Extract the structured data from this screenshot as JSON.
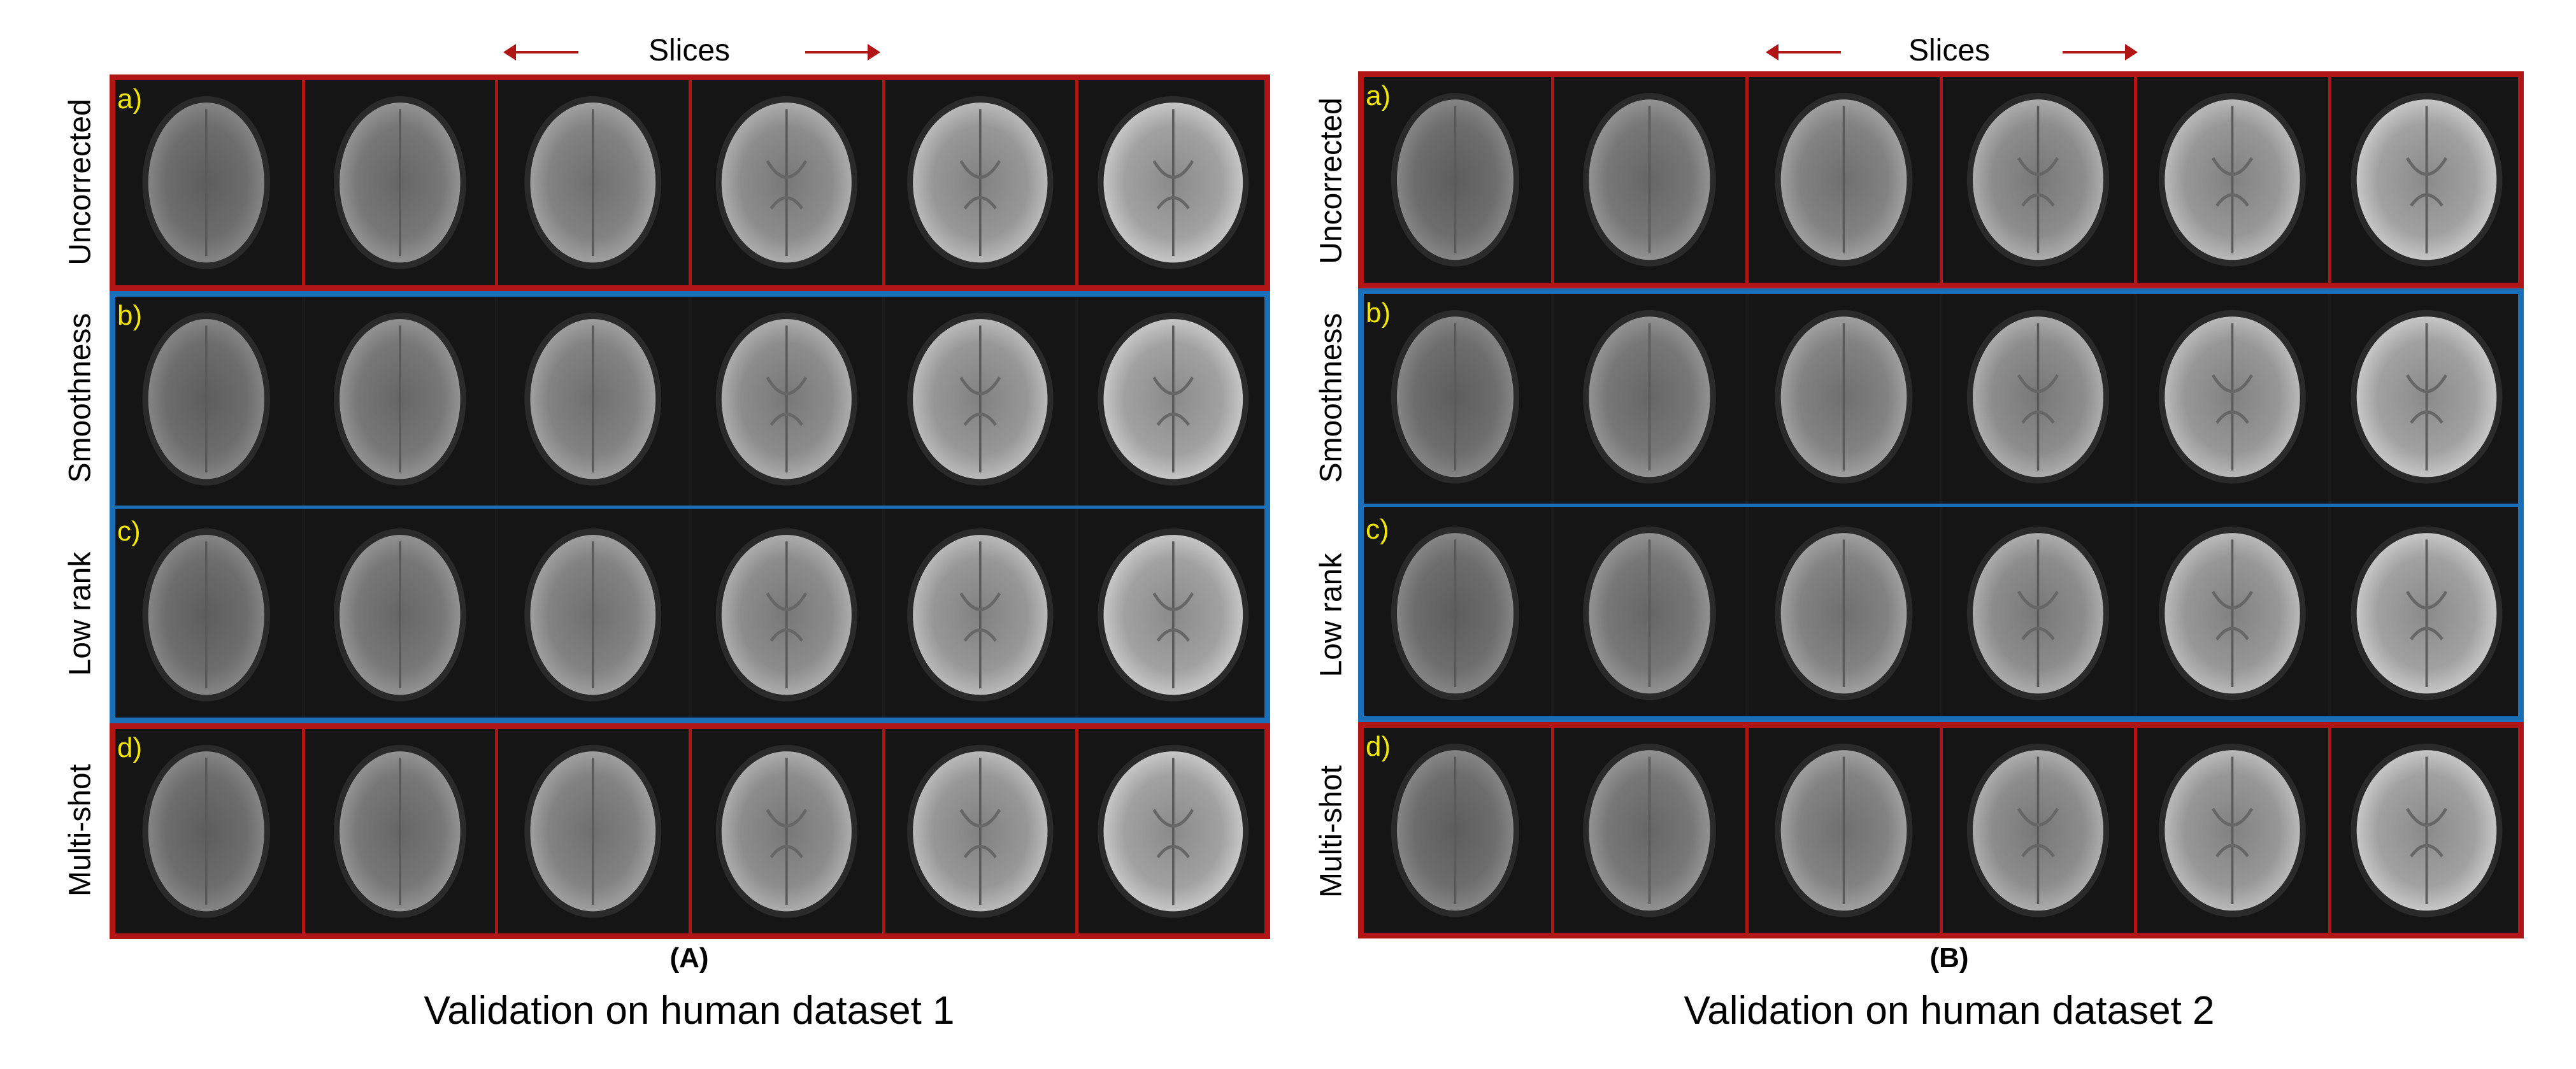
{
  "panels": [
    {
      "id": "A",
      "header": "Slices",
      "letter": "(A)",
      "caption": "Validation on human dataset 1",
      "rows": [
        {
          "letter": "a)",
          "label": "Uncorrected"
        },
        {
          "letter": "b)",
          "label": "Smoothness"
        },
        {
          "letter": "c)",
          "label": "Low rank"
        },
        {
          "letter": "d)",
          "label": "Multi-shot"
        }
      ]
    },
    {
      "id": "B",
      "header": "Slices",
      "letter": "(B)",
      "caption": "Validation on human dataset 2",
      "rows": [
        {
          "letter": "a)",
          "label": "Uncorrected"
        },
        {
          "letter": "b)",
          "label": "Smoothness"
        },
        {
          "letter": "c)",
          "label": "Low rank"
        },
        {
          "letter": "d)",
          "label": "Multi-shot"
        }
      ]
    }
  ],
  "colors": {
    "frame_red": "#b11515",
    "frame_blue": "#1a6fb8",
    "row_letter": "#f3e600"
  },
  "icons": [
    "arrow-left-icon",
    "arrow-right-icon"
  ]
}
